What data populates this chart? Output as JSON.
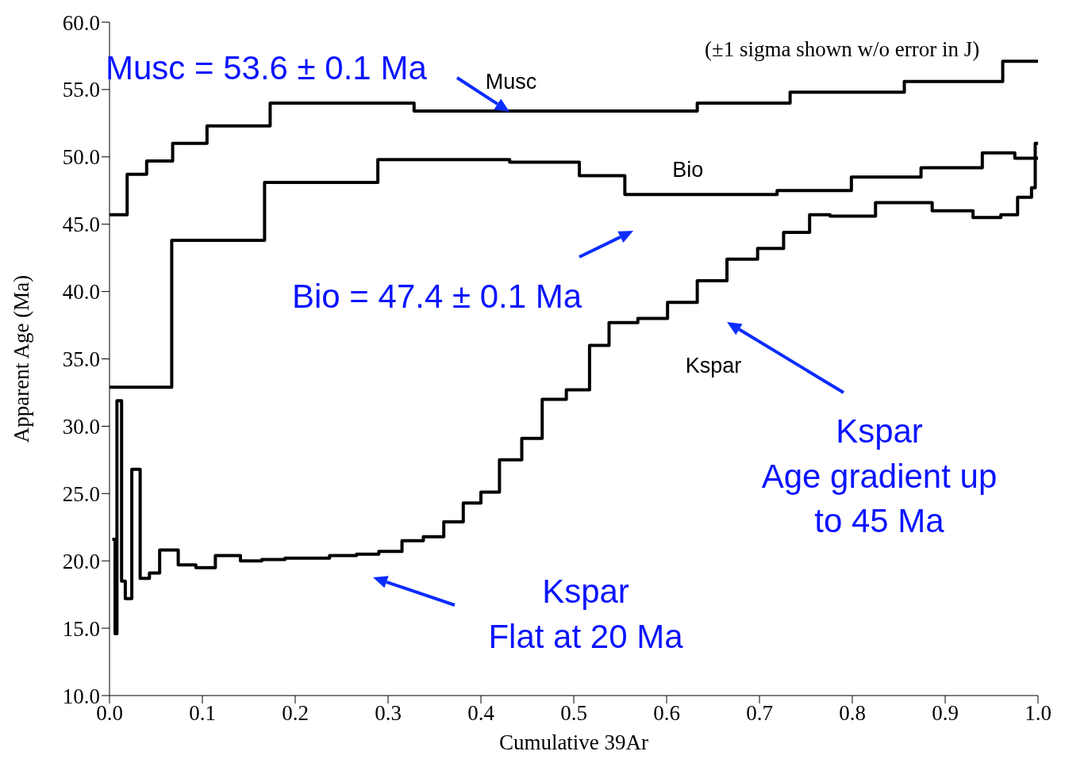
{
  "chart_data": {
    "type": "step",
    "xlabel": "Cumulative 39Ar",
    "ylabel": "Apparent Age (Ma)",
    "xlim": [
      0,
      1
    ],
    "ylim": [
      10,
      60
    ],
    "xticks": [
      {
        "value": 0,
        "label": "0.0"
      },
      0.1,
      0.2,
      0.3,
      0.4,
      0.5,
      0.6,
      0.7,
      0.8,
      0.9,
      {
        "value": 1,
        "label": "1.0"
      }
    ],
    "yticks": [
      {
        "value": 10,
        "label": "10.0"
      },
      {
        "value": 15,
        "label": "15.0"
      },
      {
        "value": 20,
        "label": "20.0"
      },
      {
        "value": 25,
        "label": "25.0"
      },
      {
        "value": 30,
        "label": "30.0"
      },
      {
        "value": 35,
        "label": "35.0"
      },
      {
        "value": 40,
        "label": "40.0"
      },
      {
        "value": 45,
        "label": "45.0"
      },
      {
        "value": 50,
        "label": "50.0"
      },
      {
        "value": 55,
        "label": "55.0"
      },
      {
        "value": 60,
        "label": "60.0"
      }
    ],
    "marker": "none",
    "line_style": "solid",
    "series": [
      {
        "name": "Musc",
        "color": "#000000",
        "x": [
          0,
          0.019,
          0.04,
          0.068,
          0.105,
          0.173,
          0.328,
          0.633,
          0.733,
          0.856,
          0.962,
          0.992,
          1.0
        ],
        "values": [
          45.7,
          48.7,
          49.7,
          51.0,
          52.3,
          54.0,
          53.4,
          54.0,
          54.8,
          55.6,
          57.1,
          57.1,
          57.1
        ]
      },
      {
        "name": "Bio",
        "color": "#000000",
        "x": [
          0,
          0.067,
          0.167,
          0.289,
          0.431,
          0.506,
          0.555,
          0.719,
          0.799,
          0.874,
          0.94,
          0.975,
          1.0
        ],
        "values": [
          32.9,
          43.8,
          48.1,
          49.8,
          49.6,
          48.6,
          47.2,
          47.5,
          48.5,
          49.2,
          50.3,
          49.9,
          49.9
        ]
      },
      {
        "name": "Kspar",
        "color": "#000000",
        "x": [
          0.003,
          0.006,
          0.008,
          0.013,
          0.017,
          0.024,
          0.033,
          0.043,
          0.054,
          0.074,
          0.093,
          0.114,
          0.141,
          0.164,
          0.189,
          0.237,
          0.266,
          0.29,
          0.315,
          0.338,
          0.36,
          0.381,
          0.4,
          0.42,
          0.444,
          0.466,
          0.492,
          0.517,
          0.538,
          0.569,
          0.601,
          0.633,
          0.665,
          0.698,
          0.726,
          0.754,
          0.776,
          0.825,
          0.886,
          0.93,
          0.96,
          0.978,
          0.993,
          0.997,
          1.0
        ],
        "values": [
          21.6,
          14.6,
          31.9,
          18.5,
          17.2,
          26.8,
          18.7,
          19.1,
          20.8,
          19.7,
          19.5,
          20.4,
          20.0,
          20.1,
          20.2,
          20.4,
          20.5,
          20.7,
          21.5,
          21.8,
          22.9,
          24.3,
          25.1,
          27.5,
          29.1,
          32.0,
          32.7,
          36.0,
          37.7,
          38.0,
          39.2,
          40.8,
          42.4,
          43.2,
          44.4,
          45.7,
          45.6,
          46.6,
          46.0,
          45.5,
          45.7,
          47.0,
          47.7,
          51.0,
          51.0
        ]
      }
    ],
    "annotations": [
      "(±1 sigma shown w/o error in J)",
      "Musc = 53.6 ± 0.1 Ma",
      "Bio = 47.4 ± 0.1 Ma",
      "Kspar\nAge gradient up\nto 45 Ma",
      "Kspar\nFlat at 20 Ma"
    ]
  }
}
